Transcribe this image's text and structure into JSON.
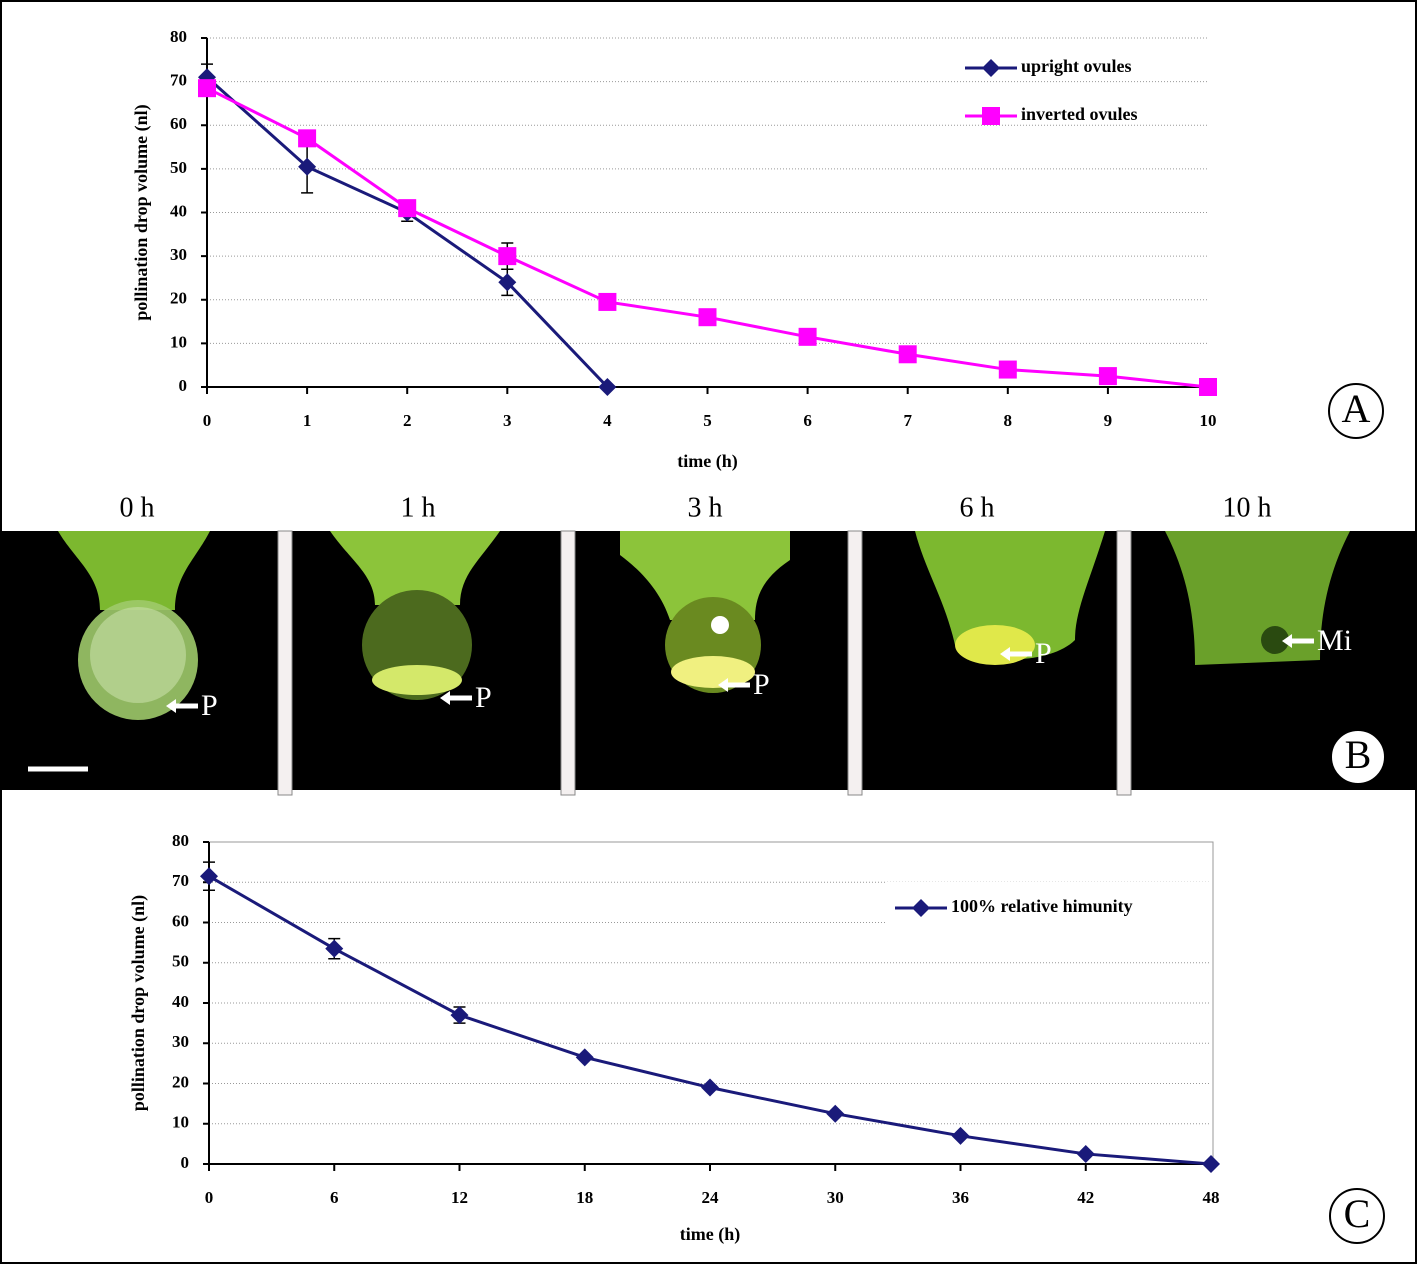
{
  "chart_data": [
    {
      "type": "line",
      "panel": "A",
      "xlabel": "time (h)",
      "ylabel": "pollination drop volume (nl)",
      "x": [
        0,
        1,
        2,
        3,
        4,
        5,
        6,
        7,
        8,
        9,
        10
      ],
      "xlim": [
        0,
        10
      ],
      "xticks": [
        0,
        1,
        2,
        3,
        4,
        5,
        6,
        7,
        8,
        9,
        10
      ],
      "ylim": [
        0,
        80
      ],
      "yticks": [
        0,
        10,
        20,
        30,
        40,
        50,
        60,
        70,
        80
      ],
      "grid": true,
      "legend": "upper right",
      "series": [
        {
          "name": "upright ovules",
          "color": "#1a1a7a",
          "marker": "diamond",
          "values": [
            71,
            50.5,
            40,
            24,
            0,
            null,
            null,
            null,
            null,
            null,
            null
          ],
          "errors": [
            3,
            6,
            2,
            3,
            null,
            null,
            null,
            null,
            null,
            null,
            null
          ]
        },
        {
          "name": "inverted ovules",
          "color": "#ff00ff",
          "marker": "square",
          "values": [
            68.5,
            57,
            41,
            30,
            19.5,
            16,
            11.5,
            7.5,
            4,
            2.5,
            0
          ],
          "errors": [
            null,
            null,
            null,
            3,
            null,
            null,
            null,
            null,
            null,
            null,
            null
          ]
        }
      ]
    },
    {
      "type": "line",
      "panel": "C",
      "xlabel": "time (h)",
      "ylabel": "pollination drop volume (nl)",
      "x": [
        0,
        6,
        12,
        18,
        24,
        30,
        36,
        42,
        48
      ],
      "xlim": [
        0,
        48
      ],
      "xticks": [
        0,
        6,
        12,
        18,
        24,
        30,
        36,
        42,
        48
      ],
      "ylim": [
        0,
        80
      ],
      "yticks": [
        0,
        10,
        20,
        30,
        40,
        50,
        60,
        70,
        80
      ],
      "grid": true,
      "legend": "upper right",
      "series": [
        {
          "name": "100% relative himunity",
          "color": "#1a1a7a",
          "marker": "diamond",
          "values": [
            71.5,
            53.5,
            37,
            26.5,
            19,
            12.5,
            7,
            2.5,
            0
          ],
          "errors": [
            3.5,
            2.5,
            2,
            null,
            null,
            null,
            null,
            null,
            null
          ]
        }
      ]
    }
  ],
  "photo_strip": {
    "times": [
      "0 h",
      "1 h",
      "3 h",
      "6 h",
      "10 h"
    ],
    "labels": [
      "P",
      "P",
      "P",
      "P",
      "Mi"
    ]
  },
  "panel_labels": [
    "A",
    "B",
    "C"
  ]
}
